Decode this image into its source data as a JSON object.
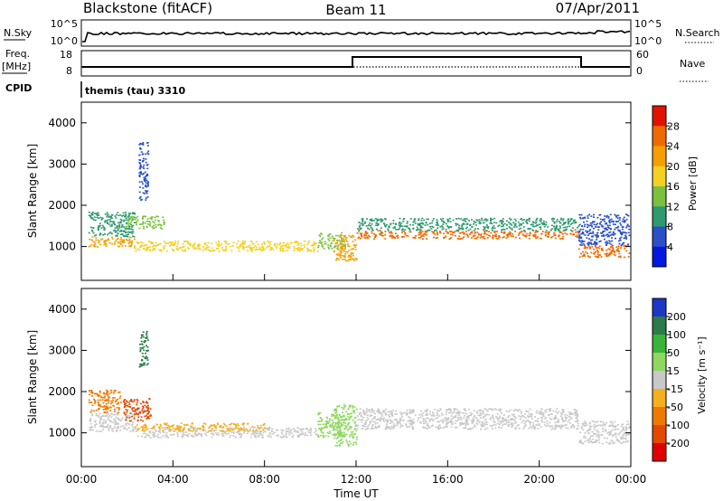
{
  "header": {
    "station": "Blackstone (fitACF)",
    "beam": "Beam 11",
    "date": "07/Apr/2011"
  },
  "status_panels": {
    "nsky_label": "N.Sky",
    "nsearch_label": "N.Search",
    "nsky_ticks": [
      "10^5",
      "10^0"
    ],
    "nsearch_ticks": [
      "10^5",
      "10^0"
    ],
    "freq_label_1": "Freq.",
    "freq_label_2": "[MHz]",
    "freq_ticks": [
      "18",
      "8"
    ],
    "nave_label": "Nave",
    "nave_ticks": [
      "60",
      "0"
    ],
    "cpid_label": "CPID",
    "cpid_text": "themis (tau) 3310"
  },
  "x_axis": {
    "title": "Time UT",
    "ticks": [
      "00:00",
      "04:00",
      "08:00",
      "12:00",
      "16:00",
      "20:00",
      "00:00"
    ]
  },
  "chart_data": [
    {
      "type": "scatter",
      "title": "",
      "xlabel": "Time UT",
      "ylabel": "Slant Range [km]",
      "xlim": [
        0,
        24
      ],
      "ylim": [
        180,
        4500
      ],
      "yticks": [
        "1000",
        "2000",
        "3000",
        "4000"
      ],
      "colorbar": {
        "label": "Power [dB]",
        "ticks": [
          "4",
          "8",
          "12",
          "16",
          "20",
          "24",
          "28"
        ],
        "colors": [
          "#0018e0",
          "#2a50c8",
          "#2f9a70",
          "#7cc040",
          "#f5d020",
          "#f5a000",
          "#ef6a00",
          "#e21200"
        ]
      },
      "bands": [
        {
          "x": [
            0.3,
            2.3
          ],
          "y": [
            1000,
            1250
          ],
          "value": 24
        },
        {
          "x": [
            0.3,
            2.3
          ],
          "y": [
            1250,
            1850
          ],
          "value": 10
        },
        {
          "x": [
            1.9,
            3.6
          ],
          "y": [
            1450,
            1750
          ],
          "value": 14
        },
        {
          "x": [
            2.5,
            2.9
          ],
          "y": [
            2100,
            3550
          ],
          "value": 6
        },
        {
          "x": [
            2.3,
            10.3
          ],
          "y": [
            900,
            1150
          ],
          "value": 20
        },
        {
          "x": [
            10.3,
            11.5
          ],
          "y": [
            950,
            1350
          ],
          "value": 14
        },
        {
          "x": [
            11.0,
            12.0
          ],
          "y": [
            650,
            1300
          ],
          "value": 24
        },
        {
          "x": [
            12.0,
            21.7
          ],
          "y": [
            1200,
            1400
          ],
          "value": 26
        },
        {
          "x": [
            12.0,
            21.7
          ],
          "y": [
            1400,
            1700
          ],
          "value": 12
        },
        {
          "x": [
            21.7,
            23.9
          ],
          "y": [
            750,
            1050
          ],
          "value": 26
        },
        {
          "x": [
            21.7,
            23.9
          ],
          "y": [
            1050,
            1800
          ],
          "value": 6
        }
      ]
    },
    {
      "type": "scatter",
      "title": "",
      "xlabel": "Time UT",
      "ylabel": "Slant Range [km]",
      "xlim": [
        0,
        24
      ],
      "ylim": [
        180,
        4500
      ],
      "yticks": [
        "1000",
        "2000",
        "3000",
        "4000"
      ],
      "colorbar": {
        "label": "Velocity [m s⁻¹]",
        "ticks": [
          "200",
          "100",
          "50",
          "15",
          "-15",
          "-50",
          "-100",
          "-200"
        ],
        "colors": [
          "#1d38c6",
          "#2d7a4a",
          "#38b43a",
          "#8fd860",
          "#c8c8c8",
          "#f5b020",
          "#ef7a00",
          "#e34a00",
          "#e00000"
        ]
      },
      "bands": [
        {
          "x": [
            0.3,
            2.3
          ],
          "y": [
            1050,
            1500
          ],
          "value": 0
        },
        {
          "x": [
            0.3,
            1.7
          ],
          "y": [
            1500,
            2050
          ],
          "value": -60
        },
        {
          "x": [
            1.8,
            3.0
          ],
          "y": [
            1300,
            1850
          ],
          "value": -120
        },
        {
          "x": [
            2.5,
            2.9
          ],
          "y": [
            2600,
            3500
          ],
          "value": 120
        },
        {
          "x": [
            2.3,
            10.3
          ],
          "y": [
            900,
            1150
          ],
          "value": 0
        },
        {
          "x": [
            2.3,
            8.0
          ],
          "y": [
            1050,
            1250
          ],
          "value": -40
        },
        {
          "x": [
            10.3,
            11.5
          ],
          "y": [
            900,
            1500
          ],
          "value": 20
        },
        {
          "x": [
            11.0,
            12.0
          ],
          "y": [
            700,
            1700
          ],
          "value": 30
        },
        {
          "x": [
            12.0,
            21.7
          ],
          "y": [
            1100,
            1600
          ],
          "value": 0
        },
        {
          "x": [
            21.7,
            23.9
          ],
          "y": [
            750,
            1300
          ],
          "value": 0
        }
      ]
    }
  ]
}
